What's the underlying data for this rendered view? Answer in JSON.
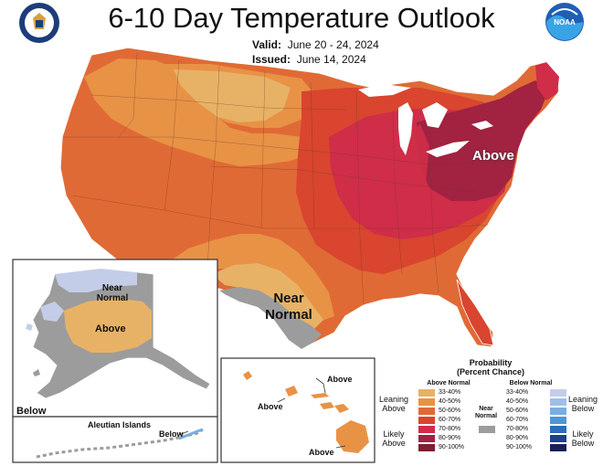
{
  "title": "6-10 Day Temperature Outlook",
  "valid_label": "Valid:",
  "valid_dates": "June 20 - 24, 2024",
  "issued_label": "Issued:",
  "issued_date": "June 14, 2024",
  "logos": {
    "left": "us-commerce-seal",
    "right": "NOAA"
  },
  "region_labels": {
    "above_northeast": "Above",
    "near_normal_texas": "Near Normal",
    "alaska_near_normal": "Near Normal",
    "alaska_above": "Above",
    "alaska_below": "Below",
    "aleutian_title": "Aleutian Islands",
    "aleutian_below": "Below",
    "hawaii_above_1": "Above",
    "hawaii_above_2": "Above",
    "hawaii_above_3": "Above"
  },
  "legend": {
    "title_line1": "Probability",
    "title_line2": "(Percent Chance)",
    "above_header": "Above Normal",
    "below_header": "Below Normal",
    "near_header": "Near Normal",
    "above_bins": [
      {
        "label": "33-40%",
        "color": "#e8b266"
      },
      {
        "label": "40-50%",
        "color": "#e89246"
      },
      {
        "label": "50-60%",
        "color": "#e06a35"
      },
      {
        "label": "60-70%",
        "color": "#d9452e"
      },
      {
        "label": "70-80%",
        "color": "#cf2d48"
      },
      {
        "label": "80-90%",
        "color": "#a12241"
      },
      {
        "label": "90-100%",
        "color": "#7d1f2e"
      }
    ],
    "below_bins": [
      {
        "label": "33-40%",
        "color": "#c4cde8"
      },
      {
        "label": "40-50%",
        "color": "#9fbfe6"
      },
      {
        "label": "50-60%",
        "color": "#78aee0"
      },
      {
        "label": "60-70%",
        "color": "#4e97d6"
      },
      {
        "label": "70-80%",
        "color": "#2b6db8"
      },
      {
        "label": "80-90%",
        "color": "#1f3f8c"
      },
      {
        "label": "90-100%",
        "color": "#1b1f58"
      }
    ],
    "near_color": "#9c9c9c",
    "leaning_above": "Leaning Above",
    "likely_above": "Likely Above",
    "leaning_below": "Leaning Below",
    "likely_below": "Likely Below"
  }
}
